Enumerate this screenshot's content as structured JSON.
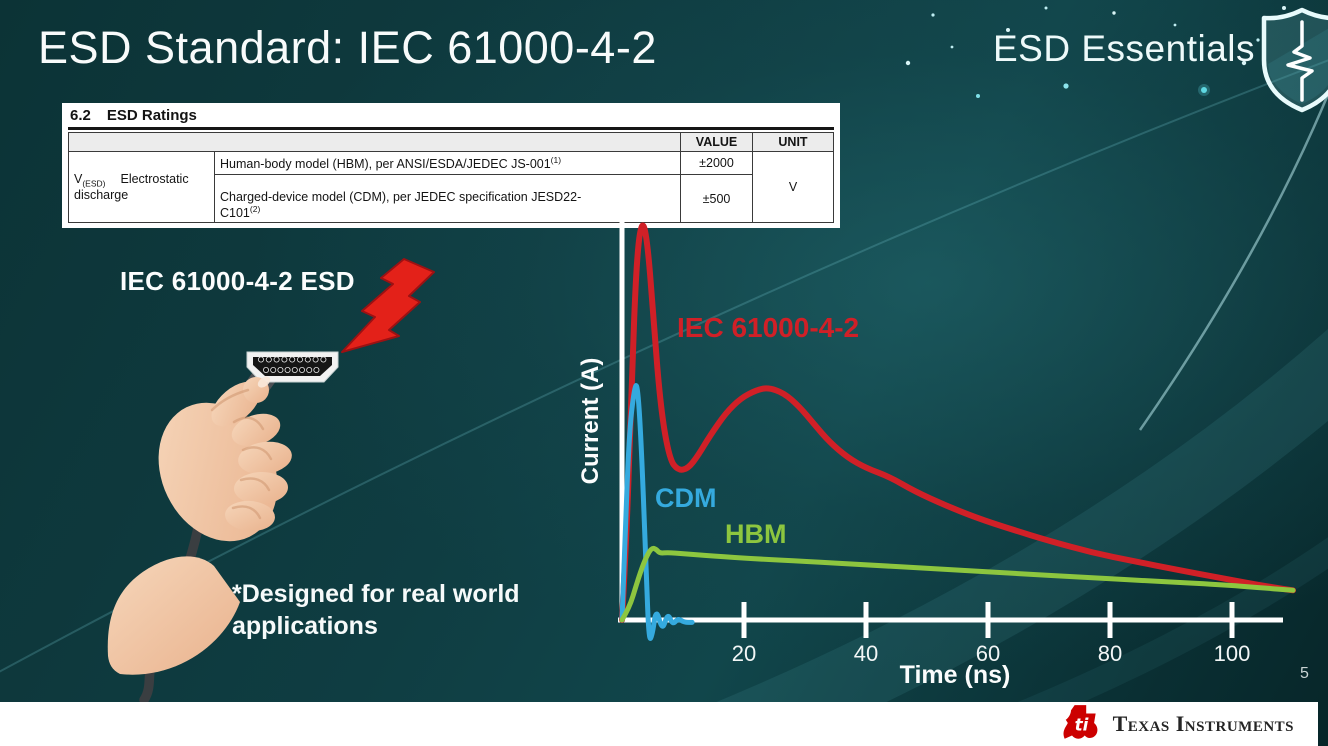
{
  "slide": {
    "title": "ESD Standard: IEC 61000-4-2",
    "badge": "ESD Essentials",
    "page_number": "5"
  },
  "ratings_table": {
    "section_number": "6.2",
    "section_title": "ESD Ratings",
    "headers": {
      "value": "VALUE",
      "unit": "UNIT"
    },
    "symbol": "V",
    "symbol_subscript": "(ESD)",
    "parameter": "Electrostatic discharge",
    "rows": [
      {
        "description": "Human-body model (HBM), per ANSI/ESDA/JEDEC JS-001",
        "footnote": "(1)",
        "value": "±2000"
      },
      {
        "description": "Charged-device model (CDM), per JEDEC specification JESD22-\nC101",
        "footnote": "(2)",
        "value": "±500"
      }
    ],
    "unit": "V"
  },
  "illustration": {
    "caption": "IEC 61000-4-2 ESD",
    "note": "*Designed for real world\napplications"
  },
  "footer": {
    "brand": "Texas Instruments"
  },
  "chart_data": {
    "type": "line",
    "xlabel": "Time (ns)",
    "ylabel": "Current (A)",
    "x_ticks": [
      20,
      40,
      60,
      80,
      100
    ],
    "xlim": [
      0,
      110
    ],
    "ylim": [
      -0.08,
      1.05
    ],
    "grid": false,
    "legend": "inline-labels",
    "series": [
      {
        "name": "IEC 61000-4-2",
        "color": "#d02027",
        "points": [
          [
            0,
            0
          ],
          [
            0.8,
            0.22
          ],
          [
            1.6,
            0.6
          ],
          [
            2.4,
            0.9
          ],
          [
            3.3,
            1.0
          ],
          [
            4.2,
            0.94
          ],
          [
            5.2,
            0.74
          ],
          [
            6.4,
            0.52
          ],
          [
            7.8,
            0.4
          ],
          [
            9.2,
            0.372
          ],
          [
            10.8,
            0.376
          ],
          [
            12.5,
            0.41
          ],
          [
            14.5,
            0.46
          ],
          [
            17,
            0.515
          ],
          [
            19.5,
            0.552
          ],
          [
            22,
            0.572
          ],
          [
            24,
            0.578
          ],
          [
            26.5,
            0.565
          ],
          [
            29,
            0.532
          ],
          [
            31.5,
            0.487
          ],
          [
            34,
            0.443
          ],
          [
            37,
            0.404
          ],
          [
            40,
            0.378
          ],
          [
            44,
            0.355
          ],
          [
            48,
            0.32
          ],
          [
            53,
            0.285
          ],
          [
            58,
            0.255
          ],
          [
            64,
            0.225
          ],
          [
            70,
            0.197
          ],
          [
            77,
            0.168
          ],
          [
            84,
            0.146
          ],
          [
            91,
            0.125
          ],
          [
            98,
            0.105
          ],
          [
            104,
            0.088
          ],
          [
            108,
            0.078
          ],
          [
            110,
            0.074
          ]
        ]
      },
      {
        "name": "CDM",
        "color": "#35aade",
        "points": [
          [
            0,
            0
          ],
          [
            0.5,
            0.2
          ],
          [
            1.2,
            0.47
          ],
          [
            2.0,
            0.575
          ],
          [
            2.5,
            0.59
          ],
          [
            3.1,
            0.46
          ],
          [
            3.9,
            0.16
          ],
          [
            4.4,
            -0.055
          ],
          [
            5.0,
            -0.035
          ],
          [
            5.6,
            0.03
          ],
          [
            6.6,
            -0.028
          ],
          [
            7.5,
            0.018
          ],
          [
            8.3,
            -0.012
          ],
          [
            9.2,
            0.004
          ],
          [
            10.2,
            -0.006
          ],
          [
            11.5,
            -0.006
          ]
        ]
      },
      {
        "name": "HBM",
        "color": "#8dc63f",
        "points": [
          [
            0,
            0
          ],
          [
            1.2,
            0.03
          ],
          [
            2.4,
            0.09
          ],
          [
            3.6,
            0.145
          ],
          [
            4.8,
            0.18
          ],
          [
            5.6,
            0.176
          ],
          [
            6.2,
            0.166
          ],
          [
            7.5,
            0.168
          ],
          [
            10,
            0.165
          ],
          [
            15,
            0.159
          ],
          [
            22,
            0.152
          ],
          [
            30,
            0.146
          ],
          [
            40,
            0.137
          ],
          [
            52,
            0.127
          ],
          [
            64,
            0.116
          ],
          [
            76,
            0.106
          ],
          [
            88,
            0.096
          ],
          [
            98,
            0.088
          ],
          [
            105,
            0.08
          ],
          [
            110,
            0.074
          ]
        ]
      }
    ]
  }
}
